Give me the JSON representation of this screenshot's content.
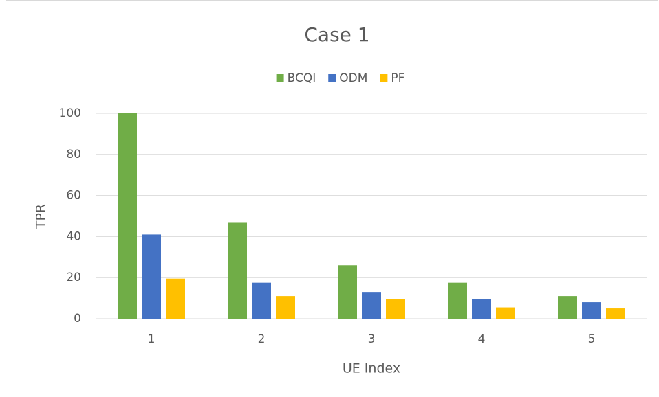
{
  "chart_data": {
    "type": "bar",
    "title": "Case 1",
    "x_label": "UE Index",
    "y_label": "TPR",
    "categories": [
      "1",
      "2",
      "3",
      "4",
      "5"
    ],
    "series": [
      {
        "name": "BCQI",
        "color": "#70ad47",
        "values": [
          100,
          47,
          26,
          17.5,
          11
        ]
      },
      {
        "name": "ODM",
        "color": "#4472c4",
        "values": [
          41,
          17.5,
          13,
          9.5,
          8
        ]
      },
      {
        "name": "PF",
        "color": "#ffc000",
        "values": [
          19.5,
          11,
          9.5,
          5.5,
          5
        ]
      }
    ],
    "ylim": [
      0,
      100
    ],
    "yticks": [
      0,
      20,
      40,
      60,
      80,
      100
    ],
    "grid": true,
    "legend": "top"
  }
}
